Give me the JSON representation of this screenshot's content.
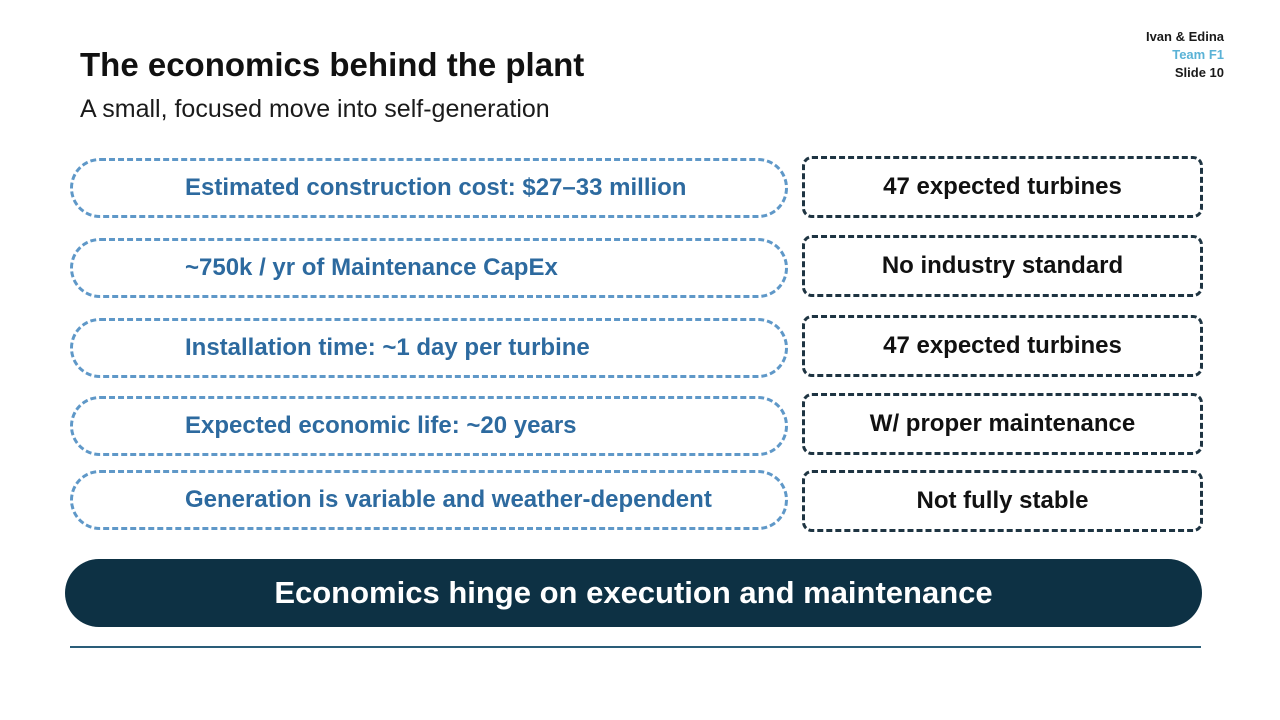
{
  "header": {
    "author": "Ivan & Edina",
    "team": "Team F1",
    "slide": "Slide 10"
  },
  "title": "The economics behind the plant",
  "subtitle": "A small, focused move into self-generation",
  "rows": [
    {
      "left": "Estimated construction cost: $27–33 million",
      "right": "47 expected turbines"
    },
    {
      "left": "~750k / yr of Maintenance CapEx",
      "right": "No industry standard"
    },
    {
      "left": "Installation time: ~1 day per turbine",
      "right": "47 expected turbines"
    },
    {
      "left": "Expected economic life: ~20 years",
      "right": "W/ proper maintenance"
    },
    {
      "left": "Generation is variable and weather-dependent",
      "right": "Not fully stable"
    }
  ],
  "banner": "Economics hinge on execution and maintenance",
  "colors": {
    "left_border": "#5f98c8",
    "left_text": "#2d6a9f",
    "right_border": "#1e3442",
    "banner_bg": "#0d3144",
    "team_accent": "#5ab2d6"
  }
}
